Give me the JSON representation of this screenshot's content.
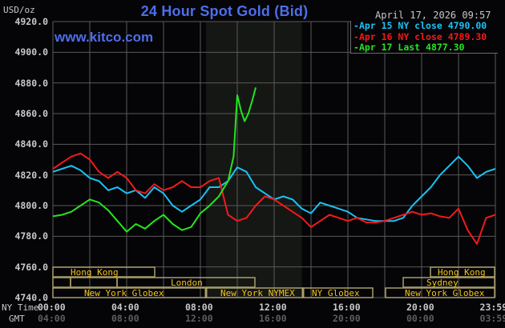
{
  "header": {
    "title": "24 Hour Spot Gold (Bid)",
    "unit": "USD/oz",
    "datetime": "April 17, 2026 09:57",
    "watermark": "www.kitco.com"
  },
  "legend": [
    {
      "label": "Apr 15 NY close 4790.00",
      "color": "#19c3f5"
    },
    {
      "label": "Apr 16 NY close 4789.30",
      "color": "#f21a1a"
    },
    {
      "label": "Apr 17 Last 4877.30",
      "color": "#22e61d"
    }
  ],
  "y_axis": {
    "ticks": [
      "4920.0",
      "4900.0",
      "4880.0",
      "4860.0",
      "4840.0",
      "4820.0",
      "4800.0",
      "4780.0",
      "4760.0",
      "4740.0"
    ]
  },
  "x_axis": {
    "ny_label": "NY Time",
    "gmt_label": "GMT",
    "ny_ticks": [
      "00:00",
      "04:00",
      "08:00",
      "12:00",
      "16:00",
      "20:00",
      "23:59"
    ],
    "gmt_ticks": [
      "04:00",
      "08:00",
      "12:00",
      "16:00",
      "20:00",
      "00:00",
      "03:59"
    ]
  },
  "sessions": {
    "hong_kong_1": "Hong Kong",
    "london": "London",
    "ny_globex_1": "New York Globex",
    "ny_nymex": "New York NYMEX",
    "ny_globex_2": "NY Globex",
    "hong_kong_2": "Hong Kong",
    "sydney": "Sydney",
    "ny_globex_3": "New York Globex"
  },
  "colors": {
    "background": "#050407",
    "grid": "#5a5a5a",
    "shade": "#151714",
    "session_border": "#a89f6a",
    "session_text": "#f5c518",
    "title": "#4d6fe8"
  },
  "chart_data": {
    "type": "line",
    "title": "24 Hour Spot Gold (Bid)",
    "xlabel": "NY Time",
    "ylabel": "USD/oz",
    "ylim": [
      4740,
      4920
    ],
    "xlim": [
      0,
      24
    ],
    "grid": true,
    "legend_position": "top-right",
    "shaded_region_hours": [
      8.3,
      13.5
    ],
    "series": [
      {
        "name": "Apr 15 NY close 4790.00",
        "color": "#19c3f5",
        "x": [
          0,
          0.5,
          1,
          1.5,
          2,
          2.5,
          3,
          3.5,
          4,
          4.5,
          5,
          5.5,
          6,
          6.5,
          7,
          7.5,
          8,
          8.5,
          9,
          9.5,
          10,
          10.5,
          11,
          11.5,
          12,
          12.5,
          13,
          13.5,
          14,
          14.5,
          15,
          15.5,
          16,
          16.5,
          17,
          17.5,
          18,
          18.5,
          19,
          19.5,
          20,
          20.5,
          21,
          21.5,
          22,
          22.5,
          23,
          23.5,
          24
        ],
        "y": [
          4822,
          4824,
          4826,
          4823,
          4818,
          4816,
          4810,
          4812,
          4808,
          4810,
          4805,
          4812,
          4808,
          4800,
          4796,
          4800,
          4804,
          4812,
          4812,
          4816,
          4825,
          4822,
          4812,
          4808,
          4804,
          4806,
          4804,
          4798,
          4795,
          4802,
          4800,
          4798,
          4796,
          4792,
          4791,
          4790,
          4790,
          4790,
          4792,
          4800,
          4806,
          4812,
          4820,
          4826,
          4832,
          4826,
          4818,
          4822,
          4824
        ]
      },
      {
        "name": "Apr 16 NY close 4789.30",
        "color": "#f21a1a",
        "x": [
          0,
          0.5,
          1,
          1.5,
          2,
          2.5,
          3,
          3.5,
          4,
          4.5,
          5,
          5.5,
          6,
          6.5,
          7,
          7.5,
          8,
          8.5,
          9,
          9.5,
          10,
          10.5,
          11,
          11.5,
          12,
          12.5,
          13,
          13.5,
          14,
          14.5,
          15,
          15.5,
          16,
          16.5,
          17,
          17.5,
          18,
          18.5,
          19,
          19.5,
          20,
          20.5,
          21,
          21.5,
          22,
          22.5,
          23,
          23.5,
          24
        ],
        "y": [
          4824,
          4828,
          4832,
          4834,
          4830,
          4822,
          4818,
          4822,
          4818,
          4810,
          4808,
          4814,
          4810,
          4812,
          4816,
          4812,
          4812,
          4816,
          4818,
          4794,
          4790,
          4792,
          4800,
          4806,
          4804,
          4800,
          4796,
          4792,
          4786,
          4790,
          4794,
          4792,
          4790,
          4792,
          4789,
          4789,
          4790,
          4792,
          4794,
          4796,
          4794,
          4795,
          4793,
          4792,
          4798,
          4784,
          4775,
          4792,
          4794
        ]
      },
      {
        "name": "Apr 17 Last 4877.30",
        "color": "#22e61d",
        "x": [
          0,
          0.5,
          1,
          1.5,
          2,
          2.5,
          3,
          3.5,
          4,
          4.5,
          5,
          5.5,
          6,
          6.5,
          7,
          7.5,
          8,
          8.5,
          9,
          9.5,
          9.8,
          10,
          10.2,
          10.4,
          10.6,
          10.8,
          11
        ],
        "y": [
          4793,
          4794,
          4796,
          4800,
          4804,
          4802,
          4797,
          4790,
          4783,
          4788,
          4785,
          4790,
          4794,
          4788,
          4784,
          4786,
          4795,
          4800,
          4806,
          4816,
          4832,
          4872,
          4862,
          4855,
          4860,
          4868,
          4877
        ]
      }
    ]
  }
}
